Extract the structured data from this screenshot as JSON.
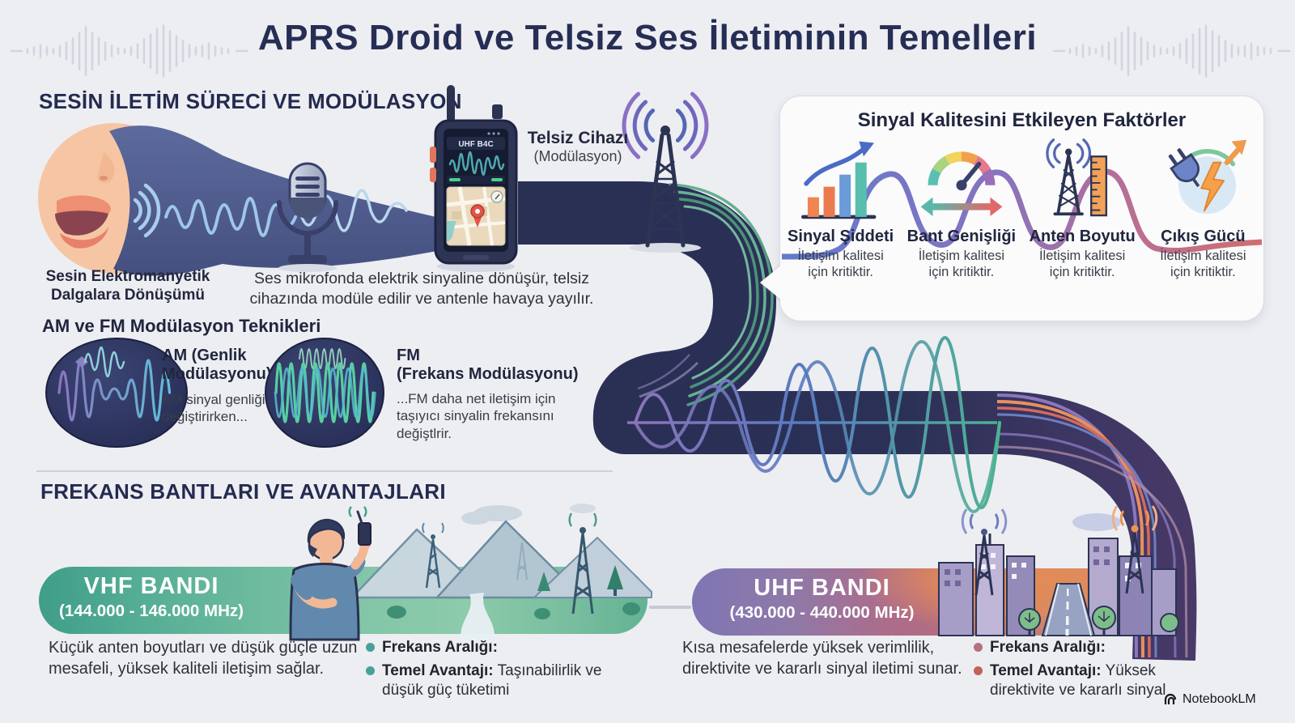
{
  "title": "APRS Droid ve Telsiz Ses İletiminin Temelleri",
  "watermark": "NotebookLM",
  "transmission": {
    "heading": "SESİN İLETİM SÜRECİ VE MODÜLASYON",
    "mouth_caption": "Sesin Elektromanyetik Dalgalara Dönüşümü",
    "mic_caption": "Ses mikrofonda elektrik sinyaline dönüşür, telsiz cihazında modüle edilir ve antenle havaya yayılır.",
    "radio_label": "Telsiz Cihazı",
    "radio_sublabel": "(Modülasyon)",
    "radio_screen_text": "UHF B4C"
  },
  "factors": {
    "title": "Sinyal Kalitesini Etkileyen Faktörler",
    "items": [
      {
        "label": "Sinyal Şiddeti",
        "caption": "İletişim kalitesi için kritiktir.",
        "icon": "signal-strength-chart-icon"
      },
      {
        "label": "Bant Genişliği",
        "caption": "İletişim kalitesi için kritiktir.",
        "icon": "bandwidth-gauge-icon"
      },
      {
        "label": "Anten Boyutu",
        "caption": "İletişim kalitesi için kritiktir.",
        "icon": "antenna-size-icon"
      },
      {
        "label": "Çıkış Gücü",
        "caption": "İletişim kalitesi için kritiktir.",
        "icon": "output-power-icon"
      }
    ]
  },
  "modulation": {
    "heading": "AM ve FM Modülasyon Teknikleri",
    "am": {
      "title_line1": "AM (Genlik",
      "title_line2": "Modülasyonu)",
      "caption": "AM sinyal genliğini değiştirirken..."
    },
    "fm": {
      "title_line1": "FM",
      "title_line2": "(Frekans Modülasyonu)",
      "caption": "...FM daha net iletişim için taşıyıcı sinyalin frekansını değiştlrir."
    }
  },
  "bands": {
    "heading": "FREKANS BANTLARI VE AVANTAJLARI",
    "vhf": {
      "name": "VHF BANDI",
      "range": "(144.000 - 146.000 MHz)",
      "description": "Küçük anten boyutları ve düşük güçle uzun mesafeli, yüksek kaliteli iletişim sağlar.",
      "bullets": [
        {
          "label": "Frekans Aralığı:",
          "text": ""
        },
        {
          "label": "Temel Avantajı:",
          "text": "Taşınabilirlik ve düşük güç tüketimi"
        }
      ]
    },
    "uhf": {
      "name": "UHF BANDI",
      "range": "(430.000 - 440.000 MHz)",
      "description": "Kısa mesafelerde yüksek verimlilik, direktivite ve kararlı sinyal iletimi sunar.",
      "bullets": [
        {
          "label": "Frekans Aralığı:",
          "text": ""
        },
        {
          "label": "Temel Avantajı:",
          "text": "Yüksek direktivite ve kararlı sinyal"
        }
      ]
    }
  },
  "colors": {
    "accent_navy": "#2b3156",
    "vhf_green": "#4aa78f",
    "uhf_purple": "#8178b6",
    "uhf_pink": "#b56b80",
    "sunset_orange": "#e8935f"
  }
}
